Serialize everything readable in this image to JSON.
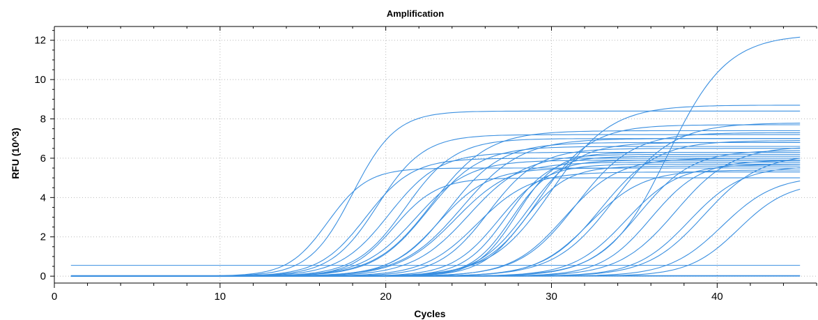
{
  "chart_data": {
    "type": "line",
    "title": "Amplification",
    "xlabel": "Cycles",
    "ylabel": "RFU (10^3)",
    "xlim": [
      0,
      46
    ],
    "ylim": [
      -0.35,
      12.7
    ],
    "xticks": [
      0,
      10,
      20,
      30,
      40
    ],
    "yticks": [
      0,
      2,
      4,
      6,
      8,
      10,
      12
    ],
    "grid": true,
    "color": "#3a8fe0",
    "x_cycles_range": [
      1,
      45
    ],
    "curve_model": "sigmoid: rfu = plateau / (1 + exp(-(cycle - midpoint) / slope))",
    "series": [
      {
        "midpoint": 16.5,
        "plateau": 5.5,
        "slope": 1.2
      },
      {
        "midpoint": 18.0,
        "plateau": 8.4,
        "slope": 1.3
      },
      {
        "midpoint": 18.8,
        "plateau": 6.0,
        "slope": 1.4
      },
      {
        "midpoint": 19.5,
        "plateau": 7.2,
        "slope": 1.4
      },
      {
        "midpoint": 20.2,
        "plateau": 6.3,
        "slope": 1.5
      },
      {
        "midpoint": 20.5,
        "plateau": 5.0,
        "slope": 1.3
      },
      {
        "midpoint": 21.2,
        "plateau": 7.0,
        "slope": 1.5
      },
      {
        "midpoint": 21.8,
        "plateau": 5.9,
        "slope": 1.6
      },
      {
        "midpoint": 22.5,
        "plateau": 6.6,
        "slope": 1.6
      },
      {
        "midpoint": 22.8,
        "plateau": 7.4,
        "slope": 1.7
      },
      {
        "midpoint": 23.2,
        "plateau": 5.5,
        "slope": 1.5
      },
      {
        "midpoint": 23.8,
        "plateau": 6.8,
        "slope": 1.6
      },
      {
        "midpoint": 24.2,
        "plateau": 5.8,
        "slope": 1.7
      },
      {
        "midpoint": 24.6,
        "plateau": 7.0,
        "slope": 1.8
      },
      {
        "midpoint": 25.0,
        "plateau": 6.2,
        "slope": 1.7
      },
      {
        "midpoint": 25.5,
        "plateau": 5.3,
        "slope": 1.6
      },
      {
        "midpoint": 26.2,
        "plateau": 6.5,
        "slope": 1.5
      },
      {
        "midpoint": 26.8,
        "plateau": 5.7,
        "slope": 1.4
      },
      {
        "midpoint": 27.3,
        "plateau": 6.1,
        "slope": 1.3
      },
      {
        "midpoint": 27.6,
        "plateau": 5.9,
        "slope": 1.2
      },
      {
        "midpoint": 27.9,
        "plateau": 6.3,
        "slope": 1.2
      },
      {
        "midpoint": 28.3,
        "plateau": 5.6,
        "slope": 1.3
      },
      {
        "midpoint": 28.6,
        "plateau": 6.8,
        "slope": 1.5
      },
      {
        "midpoint": 29.2,
        "plateau": 7.7,
        "slope": 1.6
      },
      {
        "midpoint": 30.0,
        "plateau": 8.7,
        "slope": 1.8
      },
      {
        "midpoint": 30.8,
        "plateau": 6.0,
        "slope": 1.6
      },
      {
        "midpoint": 31.5,
        "plateau": 7.3,
        "slope": 1.7
      },
      {
        "midpoint": 32.3,
        "plateau": 5.4,
        "slope": 1.6
      },
      {
        "midpoint": 33.0,
        "plateau": 6.9,
        "slope": 1.7
      },
      {
        "midpoint": 33.8,
        "plateau": 7.8,
        "slope": 1.8
      },
      {
        "midpoint": 34.5,
        "plateau": 5.7,
        "slope": 1.6
      },
      {
        "midpoint": 35.3,
        "plateau": 6.4,
        "slope": 1.6
      },
      {
        "midpoint": 36.0,
        "plateau": 5.9,
        "slope": 1.5
      },
      {
        "midpoint": 37.0,
        "plateau": 12.3,
        "slope": 1.8
      },
      {
        "midpoint": 37.5,
        "plateau": 6.6,
        "slope": 1.7
      },
      {
        "midpoint": 38.3,
        "plateau": 5.6,
        "slope": 1.6
      },
      {
        "midpoint": 39.2,
        "plateau": 6.2,
        "slope": 1.7
      },
      {
        "midpoint": 40.3,
        "plateau": 5.1,
        "slope": 1.6
      },
      {
        "midpoint": 41.3,
        "plateau": 4.8,
        "slope": 1.5
      }
    ],
    "flat_series": [
      {
        "level": 0.55
      },
      {
        "level": 0.03
      },
      {
        "level": 0.0
      }
    ]
  }
}
